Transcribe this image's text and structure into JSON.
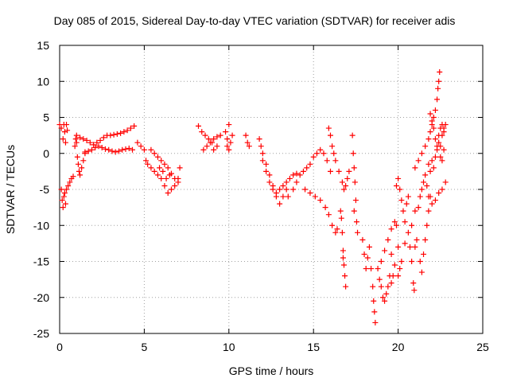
{
  "chart_data": {
    "type": "scatter",
    "title": "Day 085 of 2015, Sidereal Day-to-day VTEC variation (SDTVAR) for receiver adis",
    "xlabel": "GPS time / hours",
    "ylabel": "SDTVAR / TECUs",
    "xlim": [
      0,
      25
    ],
    "ylim": [
      -25,
      15
    ],
    "x_ticks": [
      0,
      5,
      10,
      15,
      20,
      25
    ],
    "y_ticks": [
      -25,
      -20,
      -15,
      -10,
      -5,
      0,
      5,
      10,
      15
    ],
    "grid": true,
    "marker": "+",
    "color": "#ff0000",
    "series": [
      {
        "name": "SDTVAR",
        "points": [
          [
            0.0,
            4.0
          ],
          [
            0.1,
            3.5
          ],
          [
            0.2,
            2.0
          ],
          [
            0.25,
            4.0
          ],
          [
            0.3,
            3.0
          ],
          [
            0.35,
            1.5
          ],
          [
            0.4,
            4.0
          ],
          [
            0.45,
            3.2
          ],
          [
            0.1,
            -5.0
          ],
          [
            0.15,
            -6.5
          ],
          [
            0.2,
            -7.5
          ],
          [
            0.25,
            -6.0
          ],
          [
            0.3,
            -5.5
          ],
          [
            0.35,
            -7.0
          ],
          [
            0.4,
            -5.0
          ],
          [
            0.5,
            -4.5
          ],
          [
            0.6,
            -4.0
          ],
          [
            0.7,
            -3.5
          ],
          [
            0.8,
            -3.2
          ],
          [
            0.9,
            1.0
          ],
          [
            0.95,
            2.0
          ],
          [
            1.0,
            1.5
          ],
          [
            1.05,
            -0.5
          ],
          [
            1.1,
            -1.5
          ],
          [
            1.15,
            -2.5
          ],
          [
            1.2,
            -3.0
          ],
          [
            1.3,
            -2.0
          ],
          [
            1.4,
            -1.0
          ],
          [
            1.5,
            0.0
          ],
          [
            1.0,
            2.5
          ],
          [
            1.2,
            2.2
          ],
          [
            1.4,
            2.0
          ],
          [
            1.6,
            1.8
          ],
          [
            1.8,
            1.5
          ],
          [
            2.0,
            1.2
          ],
          [
            2.2,
            1.5
          ],
          [
            2.4,
            1.8
          ],
          [
            2.6,
            2.2
          ],
          [
            2.8,
            2.5
          ],
          [
            3.0,
            2.5
          ],
          [
            3.2,
            2.6
          ],
          [
            3.4,
            2.7
          ],
          [
            3.6,
            2.8
          ],
          [
            3.8,
            3.0
          ],
          [
            4.0,
            3.2
          ],
          [
            4.2,
            3.5
          ],
          [
            4.4,
            3.8
          ],
          [
            1.5,
            0.2
          ],
          [
            1.7,
            0.3
          ],
          [
            1.9,
            0.5
          ],
          [
            2.1,
            0.8
          ],
          [
            2.3,
            1.0
          ],
          [
            2.5,
            0.8
          ],
          [
            2.7,
            0.6
          ],
          [
            2.9,
            0.5
          ],
          [
            3.1,
            0.3
          ],
          [
            3.3,
            0.2
          ],
          [
            3.5,
            0.3
          ],
          [
            3.7,
            0.5
          ],
          [
            3.9,
            0.6
          ],
          [
            4.1,
            0.7
          ],
          [
            4.3,
            0.5
          ],
          [
            4.6,
            1.5
          ],
          [
            4.8,
            1.0
          ],
          [
            5.0,
            0.5
          ],
          [
            5.1,
            -1.0
          ],
          [
            5.2,
            -1.5
          ],
          [
            5.4,
            -2.0
          ],
          [
            5.6,
            -2.5
          ],
          [
            5.8,
            -3.0
          ],
          [
            6.0,
            -3.5
          ],
          [
            6.2,
            -4.5
          ],
          [
            6.4,
            -5.5
          ],
          [
            6.6,
            -5.0
          ],
          [
            6.8,
            -4.5
          ],
          [
            7.0,
            -3.5
          ],
          [
            7.1,
            -2.0
          ],
          [
            5.4,
            0.5
          ],
          [
            5.6,
            0.0
          ],
          [
            5.8,
            -0.5
          ],
          [
            6.0,
            -1.0
          ],
          [
            6.2,
            -1.5
          ],
          [
            6.4,
            -2.0
          ],
          [
            6.6,
            -2.8
          ],
          [
            6.8,
            -3.5
          ],
          [
            7.0,
            -4.0
          ],
          [
            6.5,
            -3.0
          ],
          [
            6.3,
            -3.5
          ],
          [
            6.1,
            -2.5
          ],
          [
            5.9,
            -2.0
          ],
          [
            8.2,
            3.8
          ],
          [
            8.4,
            3.0
          ],
          [
            8.6,
            2.5
          ],
          [
            8.8,
            2.0
          ],
          [
            9.0,
            1.5
          ],
          [
            8.5,
            0.5
          ],
          [
            8.7,
            1.0
          ],
          [
            8.9,
            1.5
          ],
          [
            9.1,
            2.0
          ],
          [
            9.3,
            2.3
          ],
          [
            9.5,
            2.5
          ],
          [
            9.3,
            1.0
          ],
          [
            9.1,
            0.5
          ],
          [
            9.8,
            3.0
          ],
          [
            9.9,
            2.0
          ],
          [
            10.0,
            4.0
          ],
          [
            10.1,
            1.5
          ],
          [
            10.0,
            0.5
          ],
          [
            9.9,
            1.0
          ],
          [
            10.2,
            2.5
          ],
          [
            11.0,
            2.5
          ],
          [
            11.1,
            1.5
          ],
          [
            11.2,
            1.0
          ],
          [
            11.8,
            2.0
          ],
          [
            11.9,
            1.0
          ],
          [
            12.0,
            0.0
          ],
          [
            12.2,
            -1.5
          ],
          [
            12.4,
            -3.0
          ],
          [
            12.6,
            -4.5
          ],
          [
            12.8,
            -6.0
          ],
          [
            13.0,
            -7.0
          ],
          [
            13.2,
            -6.0
          ],
          [
            13.4,
            -5.0
          ],
          [
            12.0,
            -1.0
          ],
          [
            12.2,
            -2.5
          ],
          [
            12.4,
            -4.0
          ],
          [
            12.6,
            -5.0
          ],
          [
            12.8,
            -5.5
          ],
          [
            13.0,
            -5.0
          ],
          [
            13.2,
            -4.5
          ],
          [
            13.4,
            -4.0
          ],
          [
            13.6,
            -3.5
          ],
          [
            13.8,
            -3.0
          ],
          [
            14.0,
            -2.8
          ],
          [
            13.5,
            -6.0
          ],
          [
            13.8,
            -5.0
          ],
          [
            14.0,
            -4.0
          ],
          [
            14.2,
            -3.0
          ],
          [
            14.4,
            -2.5
          ],
          [
            14.6,
            -2.0
          ],
          [
            14.8,
            -1.5
          ],
          [
            15.0,
            -0.5
          ],
          [
            15.2,
            0.0
          ],
          [
            15.4,
            0.5
          ],
          [
            15.6,
            0.0
          ],
          [
            15.8,
            -1.0
          ],
          [
            16.0,
            -2.5
          ],
          [
            14.5,
            -5.0
          ],
          [
            14.8,
            -5.5
          ],
          [
            15.1,
            -6.0
          ],
          [
            15.4,
            -6.5
          ],
          [
            15.7,
            -7.5
          ],
          [
            15.9,
            -8.5
          ],
          [
            16.1,
            -10.0
          ],
          [
            16.3,
            -11.0
          ],
          [
            16.4,
            -10.5
          ],
          [
            15.9,
            3.5
          ],
          [
            16.0,
            2.5
          ],
          [
            16.1,
            1.0
          ],
          [
            16.2,
            0.0
          ],
          [
            16.3,
            -1.0
          ],
          [
            16.5,
            -2.5
          ],
          [
            16.7,
            -4.0
          ],
          [
            16.8,
            -5.0
          ],
          [
            16.9,
            -4.5
          ],
          [
            17.0,
            -3.5
          ],
          [
            17.1,
            -2.5
          ],
          [
            16.6,
            -8.0
          ],
          [
            16.7,
            -11.0
          ],
          [
            16.75,
            -13.5
          ],
          [
            16.8,
            -15.5
          ],
          [
            16.85,
            -17.0
          ],
          [
            16.9,
            -18.5
          ],
          [
            16.75,
            -14.5
          ],
          [
            16.65,
            -9.0
          ],
          [
            17.3,
            2.5
          ],
          [
            17.35,
            0.0
          ],
          [
            17.4,
            -2.0
          ],
          [
            17.45,
            -4.0
          ],
          [
            17.5,
            -6.5
          ],
          [
            17.55,
            -9.5
          ],
          [
            17.6,
            -11.0
          ],
          [
            17.4,
            -8.0
          ],
          [
            17.9,
            -12.0
          ],
          [
            18.0,
            -14.0
          ],
          [
            18.1,
            -16.0
          ],
          [
            18.2,
            -14.5
          ],
          [
            18.3,
            -13.0
          ],
          [
            18.4,
            -16.0
          ],
          [
            18.5,
            -18.5
          ],
          [
            18.55,
            -20.5
          ],
          [
            18.6,
            -22.0
          ],
          [
            18.65,
            -23.5
          ],
          [
            18.8,
            -16.0
          ],
          [
            18.9,
            -17.5
          ],
          [
            19.0,
            -18.5
          ],
          [
            19.1,
            -20.0
          ],
          [
            19.2,
            -20.5
          ],
          [
            19.3,
            -19.5
          ],
          [
            19.4,
            -18.5
          ],
          [
            19.5,
            -17.0
          ],
          [
            19.6,
            -18.0
          ],
          [
            19.7,
            -17.0
          ],
          [
            19.0,
            -15.0
          ],
          [
            19.2,
            -13.5
          ],
          [
            19.4,
            -12.0
          ],
          [
            19.6,
            -10.5
          ],
          [
            19.8,
            -9.5
          ],
          [
            19.9,
            -10.0
          ],
          [
            20.0,
            -13.0
          ],
          [
            20.1,
            -16.0
          ],
          [
            19.6,
            -14.0
          ],
          [
            19.8,
            -15.5
          ],
          [
            20.0,
            -17.0
          ],
          [
            20.2,
            -15.0
          ],
          [
            20.4,
            -12.5
          ],
          [
            20.6,
            -11.0
          ],
          [
            20.7,
            -13.0
          ],
          [
            20.8,
            -15.0
          ],
          [
            20.9,
            -18.0
          ],
          [
            20.95,
            -19.0
          ],
          [
            19.9,
            -4.5
          ],
          [
            20.0,
            -3.5
          ],
          [
            20.1,
            -5.0
          ],
          [
            20.2,
            -6.5
          ],
          [
            20.3,
            -8.0
          ],
          [
            20.4,
            -9.5
          ],
          [
            20.5,
            -7.0
          ],
          [
            20.6,
            -6.0
          ],
          [
            20.8,
            -10.0
          ],
          [
            21.0,
            -8.0
          ],
          [
            21.2,
            -7.5
          ],
          [
            21.3,
            -6.0
          ],
          [
            21.4,
            -5.0
          ],
          [
            21.5,
            -4.0
          ],
          [
            21.6,
            -3.0
          ],
          [
            21.7,
            -4.5
          ],
          [
            21.8,
            -6.0
          ],
          [
            22.0,
            -7.0
          ],
          [
            22.2,
            -6.5
          ],
          [
            22.4,
            -5.5
          ],
          [
            22.6,
            -5.0
          ],
          [
            22.8,
            -4.0
          ],
          [
            21.0,
            -13.0
          ],
          [
            21.1,
            -12.0
          ],
          [
            21.3,
            -15.0
          ],
          [
            21.4,
            -16.5
          ],
          [
            21.5,
            -14.0
          ],
          [
            21.6,
            -12.0
          ],
          [
            21.7,
            -10.0
          ],
          [
            21.8,
            -8.0
          ],
          [
            21.9,
            -6.0
          ],
          [
            21.0,
            -2.0
          ],
          [
            21.2,
            -1.0
          ],
          [
            21.4,
            0.0
          ],
          [
            21.6,
            1.0
          ],
          [
            21.8,
            2.0
          ],
          [
            21.9,
            3.0
          ],
          [
            22.0,
            4.0
          ],
          [
            22.1,
            5.0
          ],
          [
            22.2,
            6.0
          ],
          [
            22.3,
            7.5
          ],
          [
            22.35,
            9.0
          ],
          [
            22.4,
            10.0
          ],
          [
            22.45,
            11.3
          ],
          [
            21.8,
            -1.5
          ],
          [
            21.9,
            -2.5
          ],
          [
            22.0,
            -1.0
          ],
          [
            22.1,
            -2.0
          ],
          [
            22.2,
            -0.5
          ],
          [
            22.3,
            0.5
          ],
          [
            22.4,
            1.5
          ],
          [
            22.5,
            1.0
          ],
          [
            22.6,
            2.5
          ],
          [
            22.7,
            3.5
          ],
          [
            22.8,
            4.0
          ],
          [
            22.7,
            0.5
          ],
          [
            22.6,
            -1.0
          ],
          [
            22.5,
            -0.5
          ],
          [
            21.9,
            5.5
          ],
          [
            22.0,
            4.5
          ],
          [
            22.1,
            3.5
          ],
          [
            22.2,
            2.0
          ],
          [
            22.3,
            1.0
          ],
          [
            22.4,
            2.5
          ],
          [
            22.5,
            3.5
          ],
          [
            22.6,
            4.0
          ],
          [
            22.7,
            3.0
          ]
        ]
      }
    ]
  }
}
